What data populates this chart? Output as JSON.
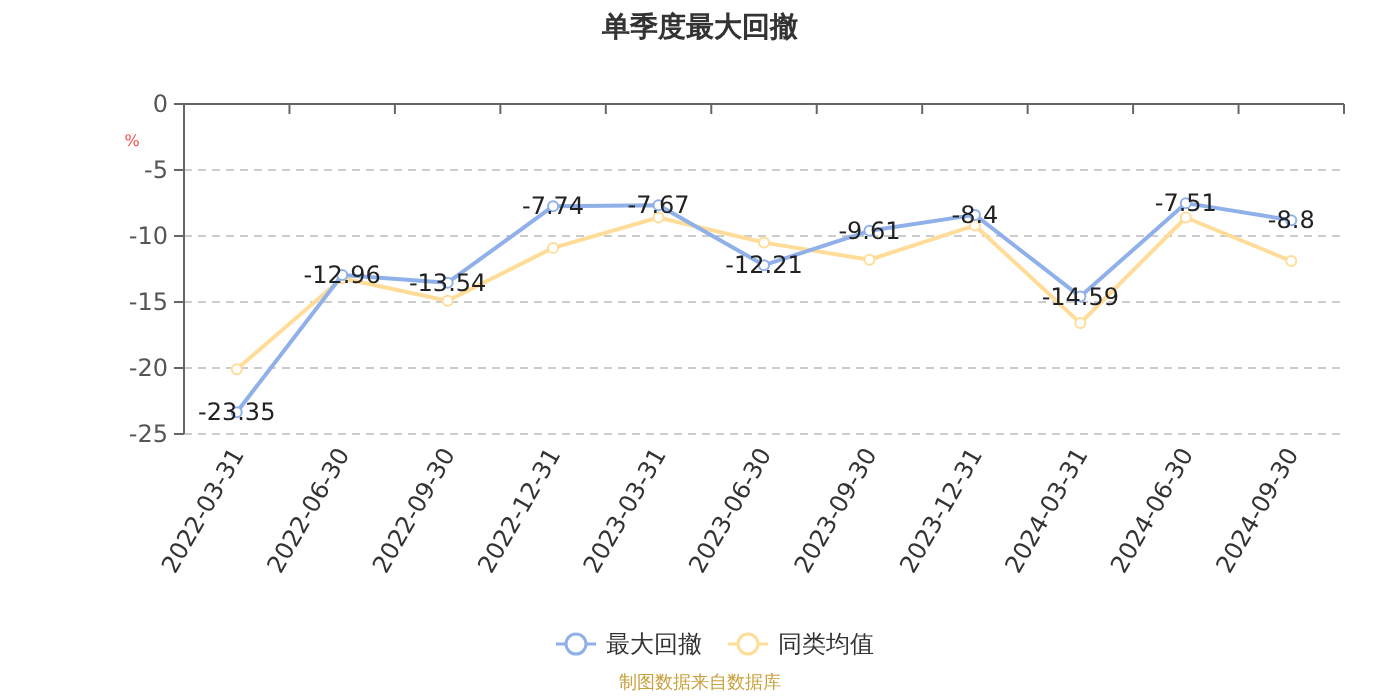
{
  "chart_data": {
    "type": "line",
    "title": "单季度最大回撤",
    "ylabel": "%",
    "categories": [
      "2022-03-31",
      "2022-06-30",
      "2022-09-30",
      "2022-12-31",
      "2023-03-31",
      "2023-06-30",
      "2023-09-30",
      "2023-12-31",
      "2024-03-31",
      "2024-06-30",
      "2024-09-30"
    ],
    "series": [
      {
        "name": "最大回撤",
        "color": "#8fb0e8",
        "values": [
          -23.35,
          -12.96,
          -13.54,
          -7.74,
          -7.67,
          -12.21,
          -9.61,
          -8.4,
          -14.59,
          -7.51,
          -8.8
        ],
        "value_labels": [
          "-23.35",
          "-12.96",
          "-13.54",
          "-7.74",
          "-7.67",
          "-12.21",
          "-9.61",
          "-8.4",
          "-14.59",
          "-7.51",
          "-8.8"
        ]
      },
      {
        "name": "同类均值",
        "color": "#ffdd99",
        "values": [
          -20.1,
          -13.2,
          -14.9,
          -10.9,
          -8.6,
          -10.5,
          -11.8,
          -9.2,
          -16.6,
          -8.6,
          -11.9
        ]
      }
    ],
    "ylim": [
      -25,
      0
    ],
    "yticks": [
      0,
      -5,
      -10,
      -15,
      -20,
      -25
    ],
    "grid": "y",
    "legend": "bottom",
    "marker": "circle",
    "line_style": "solid",
    "annotations": [
      "制图数据来自数据库"
    ]
  }
}
